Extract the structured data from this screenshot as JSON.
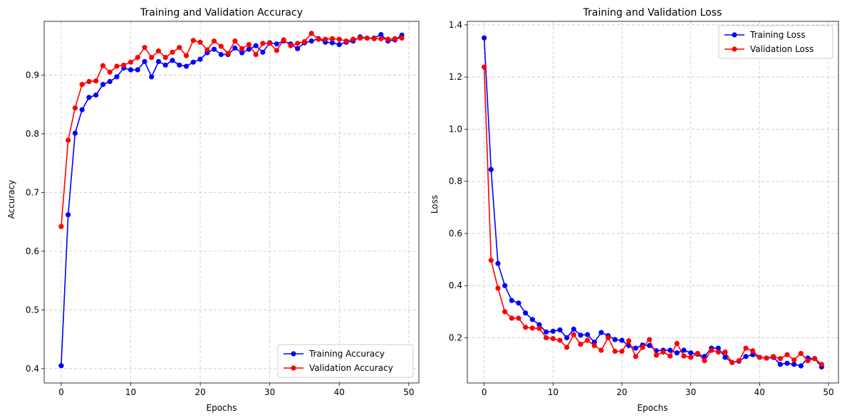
{
  "chart_data": [
    {
      "type": "line",
      "title": "Training and Validation Accuracy",
      "xlabel": "Epochs",
      "ylabel": "Accuracy",
      "xlim": [
        -2.45,
        51.45
      ],
      "ylim": [
        0.3755,
        0.9915
      ],
      "xticks": [
        0,
        10,
        20,
        30,
        40,
        50
      ],
      "xtick_labels": [
        "0",
        "10",
        "20",
        "30",
        "40",
        "50"
      ],
      "yticks": [
        0.4,
        0.5,
        0.6,
        0.7,
        0.8,
        0.9
      ],
      "ytick_labels": [
        "0.4",
        "0.5",
        "0.6",
        "0.7",
        "0.8",
        "0.9"
      ],
      "grid": true,
      "legend_position": "lower right",
      "x": [
        0,
        1,
        2,
        3,
        4,
        5,
        6,
        7,
        8,
        9,
        10,
        11,
        12,
        13,
        14,
        15,
        16,
        17,
        18,
        19,
        20,
        21,
        22,
        23,
        24,
        25,
        26,
        27,
        28,
        29,
        30,
        31,
        32,
        33,
        34,
        35,
        36,
        37,
        38,
        39,
        40,
        41,
        42,
        43,
        44,
        45,
        46,
        47,
        48,
        49
      ],
      "series": [
        {
          "name": "Training Accuracy",
          "color": "#0000ff",
          "values": [
            0.405,
            0.662,
            0.801,
            0.841,
            0.862,
            0.866,
            0.884,
            0.889,
            0.897,
            0.912,
            0.909,
            0.909,
            0.923,
            0.897,
            0.923,
            0.917,
            0.925,
            0.917,
            0.915,
            0.922,
            0.927,
            0.938,
            0.944,
            0.935,
            0.935,
            0.946,
            0.938,
            0.944,
            0.95,
            0.939,
            0.955,
            0.953,
            0.958,
            0.953,
            0.945,
            0.955,
            0.958,
            0.962,
            0.956,
            0.955,
            0.952,
            0.956,
            0.958,
            0.965,
            0.963,
            0.963,
            0.969,
            0.958,
            0.96,
            0.968
          ]
        },
        {
          "name": "Validation Accuracy",
          "color": "#ff0000",
          "values": [
            0.642,
            0.789,
            0.844,
            0.884,
            0.889,
            0.89,
            0.916,
            0.905,
            0.915,
            0.917,
            0.922,
            0.93,
            0.947,
            0.93,
            0.941,
            0.93,
            0.939,
            0.947,
            0.933,
            0.959,
            0.956,
            0.943,
            0.958,
            0.949,
            0.937,
            0.958,
            0.945,
            0.952,
            0.935,
            0.954,
            0.954,
            0.942,
            0.96,
            0.95,
            0.954,
            0.957,
            0.971,
            0.961,
            0.961,
            0.962,
            0.961,
            0.958,
            0.961,
            0.963,
            0.963,
            0.962,
            0.962,
            0.961,
            0.962,
            0.963
          ]
        }
      ]
    },
    {
      "type": "line",
      "title": "Training and Validation Loss",
      "xlabel": "Epochs",
      "ylabel": "Loss",
      "xlim": [
        -2.45,
        51.45
      ],
      "ylim": [
        0.0265,
        1.4135
      ],
      "xticks": [
        0,
        10,
        20,
        30,
        40,
        50
      ],
      "xtick_labels": [
        "0",
        "10",
        "20",
        "30",
        "40",
        "50"
      ],
      "yticks": [
        0.2,
        0.4,
        0.6,
        0.8,
        1.0,
        1.2,
        1.4
      ],
      "ytick_labels": [
        "0.2",
        "0.4",
        "0.6",
        "0.8",
        "1.0",
        "1.2",
        "1.4"
      ],
      "grid": true,
      "legend_position": "upper right",
      "x": [
        0,
        1,
        2,
        3,
        4,
        5,
        6,
        7,
        8,
        9,
        10,
        11,
        12,
        13,
        14,
        15,
        16,
        17,
        18,
        19,
        20,
        21,
        22,
        23,
        24,
        25,
        26,
        27,
        28,
        29,
        30,
        31,
        32,
        33,
        34,
        35,
        36,
        37,
        38,
        39,
        40,
        41,
        42,
        43,
        44,
        45,
        46,
        47,
        48,
        49
      ],
      "series": [
        {
          "name": "Training Loss",
          "color": "#0000ff",
          "values": [
            1.35,
            0.845,
            0.485,
            0.4,
            0.343,
            0.333,
            0.295,
            0.27,
            0.25,
            0.222,
            0.225,
            0.23,
            0.2,
            0.233,
            0.21,
            0.212,
            0.183,
            0.22,
            0.208,
            0.193,
            0.19,
            0.17,
            0.16,
            0.172,
            0.17,
            0.15,
            0.152,
            0.152,
            0.142,
            0.152,
            0.142,
            0.137,
            0.128,
            0.16,
            0.16,
            0.125,
            0.105,
            0.11,
            0.128,
            0.135,
            0.125,
            0.122,
            0.125,
            0.098,
            0.102,
            0.098,
            0.092,
            0.122,
            0.12,
            0.088
          ]
        },
        {
          "name": "Validation Loss",
          "color": "#ff0000",
          "values": [
            1.238,
            0.497,
            0.39,
            0.3,
            0.275,
            0.275,
            0.24,
            0.237,
            0.236,
            0.2,
            0.197,
            0.19,
            0.163,
            0.212,
            0.175,
            0.19,
            0.17,
            0.152,
            0.2,
            0.148,
            0.148,
            0.188,
            0.128,
            0.163,
            0.193,
            0.133,
            0.145,
            0.13,
            0.178,
            0.13,
            0.125,
            0.14,
            0.112,
            0.152,
            0.145,
            0.145,
            0.105,
            0.112,
            0.16,
            0.15,
            0.125,
            0.122,
            0.128,
            0.12,
            0.135,
            0.115,
            0.14,
            0.112,
            0.12,
            0.098
          ]
        }
      ]
    }
  ]
}
